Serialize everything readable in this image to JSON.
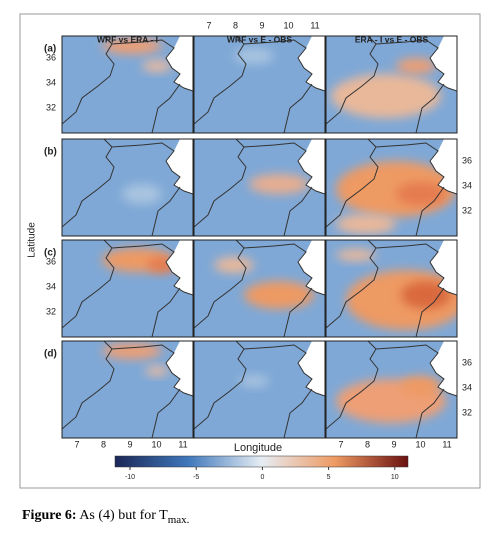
{
  "figure": {
    "columns": [
      "WRF vs ERA - I",
      "WRF vs E - OBS",
      "ERA - I vs E - OBS"
    ],
    "rows": [
      "(a)",
      "(b)",
      "(c)",
      "(d)"
    ],
    "latitude_ticks": [
      36,
      34,
      32
    ],
    "longitude_ticks": [
      7,
      8,
      9,
      10,
      11
    ],
    "y_label": "Latitude",
    "x_label": "Longitude",
    "colorbar_ticks": [
      -10,
      -5,
      0,
      5,
      10
    ]
  },
  "caption": {
    "label": "Figure 6:",
    "text": "As (4) but for T",
    "subscript": "max."
  }
}
